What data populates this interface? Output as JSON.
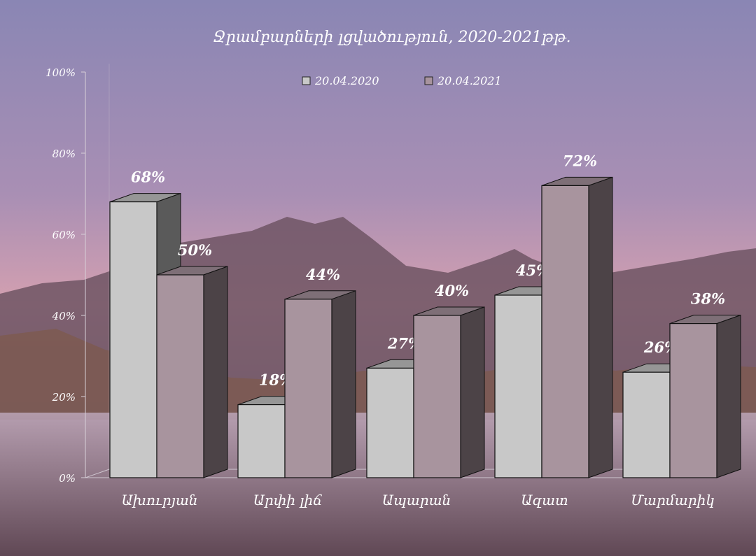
{
  "chart_data": {
    "type": "bar",
    "title": "Ջրամբարների լցվածություն,  2020-2021թթ.",
    "categories": [
      "Ախուրյան",
      "Արփի լիճ",
      "Ապարան",
      "Ազատ",
      "Մարմարիկ"
    ],
    "series": [
      {
        "name": "20.04.2020",
        "values": [
          68,
          18,
          27,
          45,
          26
        ],
        "color": "#c8c8c8"
      },
      {
        "name": "20.04.2021",
        "values": [
          50,
          44,
          40,
          72,
          38
        ],
        "color": "#a8949e"
      }
    ],
    "data_labels": [
      [
        "68%",
        "18%",
        "27%",
        "45%",
        "26%"
      ],
      [
        "50%",
        "44%",
        "40%",
        "72%",
        "38%"
      ]
    ],
    "y_ticks": [
      "0%",
      "20%",
      "40%",
      "60%",
      "80%",
      "100%"
    ],
    "ylim": [
      0,
      100
    ],
    "unit": "%",
    "xlabel": "",
    "ylabel": "",
    "legend_position": "top",
    "grid": false,
    "style": "3d-bar"
  }
}
